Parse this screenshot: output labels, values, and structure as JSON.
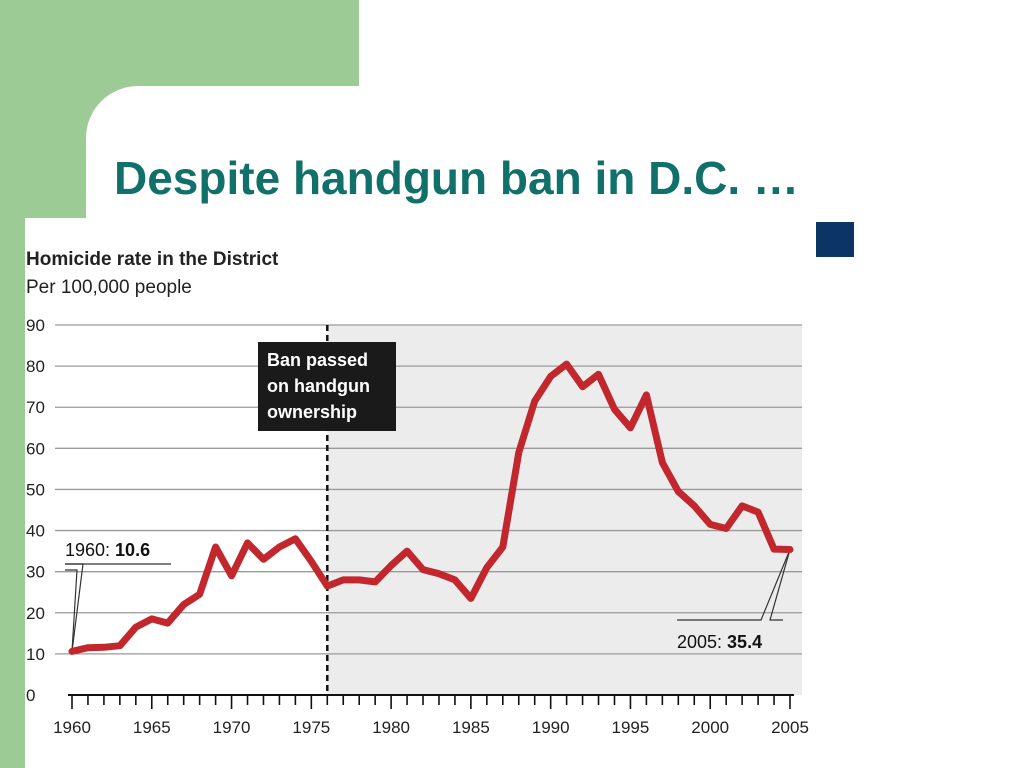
{
  "slide": {
    "title": "Despite handgun ban in D.C. …",
    "accent_color": "#9dcb95",
    "title_color": "#12706a",
    "bullet_color": "#0c3566"
  },
  "chart_data": {
    "type": "line",
    "title": "Homicide rate in the District",
    "subtitle": "Per 100,000 people",
    "xlabel": "",
    "ylabel": "",
    "xlim": [
      1960,
      2005
    ],
    "ylim": [
      0,
      90
    ],
    "x_ticks": [
      "1960",
      "1965",
      "1970",
      "1975",
      "1980",
      "1985",
      "1990",
      "1995",
      "2000",
      "2005"
    ],
    "y_ticks": [
      "0",
      "10",
      "20",
      "30",
      "40",
      "50",
      "60",
      "70",
      "80",
      "90"
    ],
    "grid": true,
    "line_color": "#c1272d",
    "shaded_region": {
      "from": 1976,
      "to": 2005,
      "color": "#ececec"
    },
    "series": [
      {
        "x": [
          1960,
          1961,
          1962,
          1963,
          1964,
          1965,
          1966,
          1967,
          1968,
          1969,
          1970,
          1971,
          1972,
          1973,
          1974,
          1975,
          1976,
          1977,
          1978,
          1979,
          1980,
          1981,
          1982,
          1983,
          1984,
          1985,
          1986,
          1987,
          1988,
          1989,
          1990,
          1991,
          1992,
          1993,
          1994,
          1995,
          1996,
          1997,
          1998,
          1999,
          2000,
          2001,
          2002,
          2003,
          2004,
          2005
        ],
        "values": [
          10.6,
          11.5,
          11.6,
          12,
          16.5,
          18.5,
          17.5,
          22,
          24.5,
          36,
          29,
          37,
          33,
          36,
          38,
          32.5,
          26.5,
          28,
          28,
          27.5,
          31.5,
          35,
          30.5,
          29.5,
          28,
          23.5,
          31,
          36,
          59,
          71.5,
          77.5,
          80.5,
          75,
          78,
          69.5,
          65,
          73,
          56.5,
          49.5,
          46,
          41.5,
          40.5,
          46,
          44.5,
          35.5,
          35.4
        ]
      }
    ],
    "annotations": [
      {
        "x": 1976,
        "text": "Ban passed on handgun ownership",
        "lines": [
          "Ban passed",
          "on handgun",
          "ownership"
        ]
      },
      {
        "x": 1960,
        "y": 10.6,
        "prefix": "1960: ",
        "value": "10.6"
      },
      {
        "x": 2005,
        "y": 35.4,
        "prefix": "2005: ",
        "value": "35.4"
      }
    ]
  }
}
